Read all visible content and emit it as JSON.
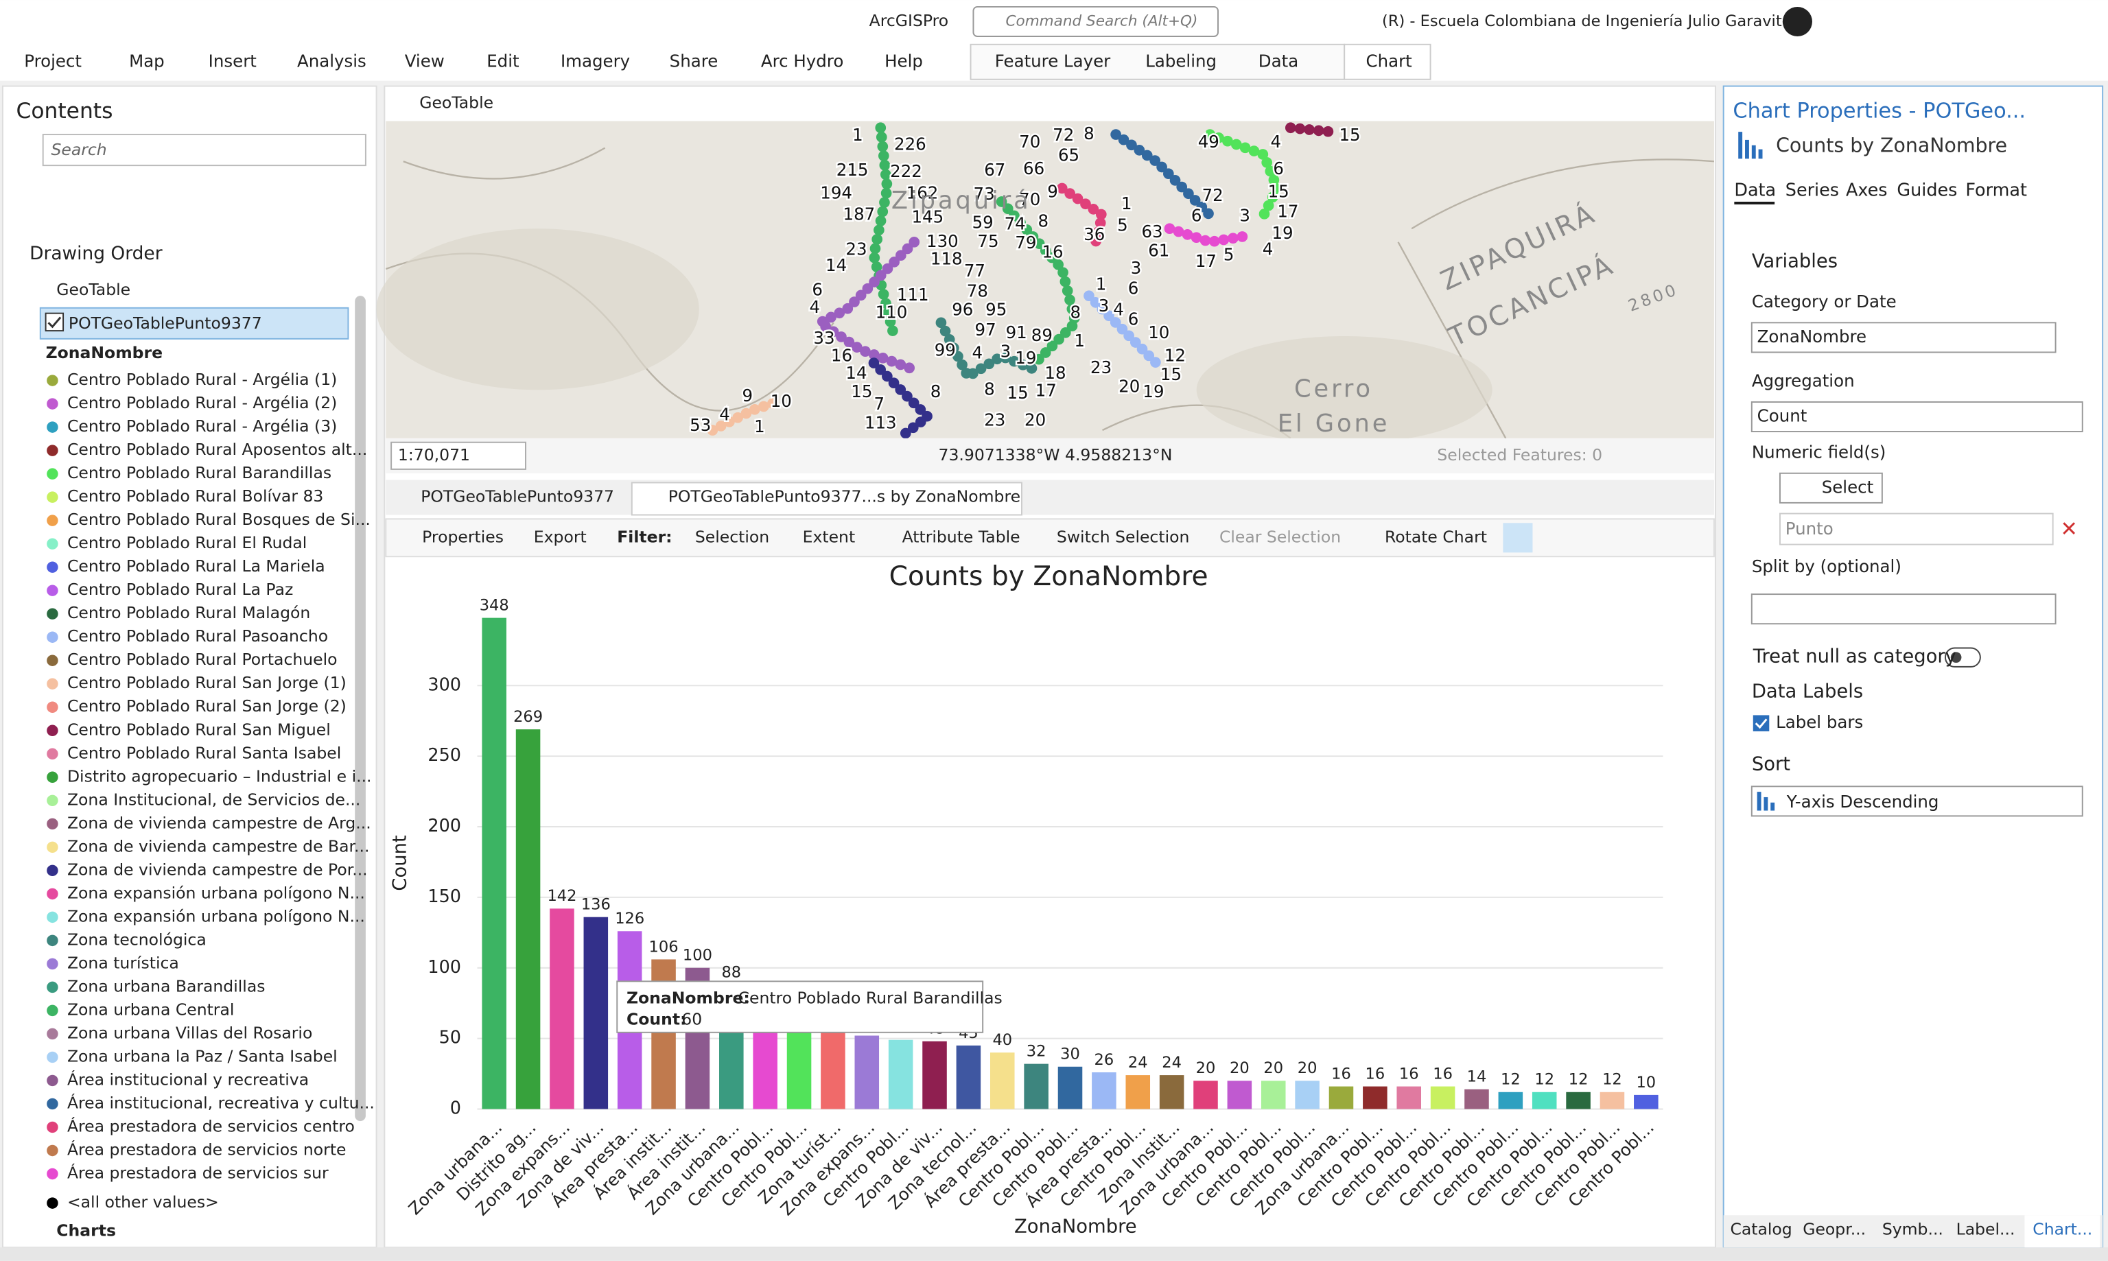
{
  "titlebar": {
    "app": "ArcGISPro",
    "search": "Command Search (Alt+Q)",
    "org": "(R) - Escuela Colombiana de Ingeniería Julio Garavito"
  },
  "menu": [
    "Project",
    "Map",
    "Insert",
    "Analysis",
    "View",
    "Edit",
    "Imagery",
    "Share",
    "Arc Hydro",
    "Help"
  ],
  "context_tabs": [
    "Feature Layer",
    "Labeling",
    "Data",
    "Chart"
  ],
  "contents": {
    "title": "Contents",
    "search": "Search",
    "drawing_order": "Drawing Order",
    "map": "GeoTable",
    "layer": "POTGeoTablePunto9377",
    "field": "ZonaNombre",
    "items": [
      {
        "label": "Centro Poblado Rural - Argélia (1)",
        "color": "#9aaa3c"
      },
      {
        "label": "Centro Poblado Rural - Argélia (2)",
        "color": "#c05ad0"
      },
      {
        "label": "Centro Poblado Rural - Argélia (3)",
        "color": "#2ea0c0"
      },
      {
        "label": "Centro Poblado Rural Aposentos alt...",
        "color": "#8f2b2b"
      },
      {
        "label": "Centro Poblado Rural Barandillas",
        "color": "#52e35a"
      },
      {
        "label": "Centro Poblado Rural Bolívar 83",
        "color": "#c8f060"
      },
      {
        "label": "Centro Poblado Rural Bosques de Si...",
        "color": "#f0a04a"
      },
      {
        "label": "Centro Poblado Rural El Rudal",
        "color": "#86f0c8"
      },
      {
        "label": "Centro Poblado Rural La Mariela",
        "color": "#5060e0"
      },
      {
        "label": "Centro Poblado Rural La Paz",
        "color": "#b85de8"
      },
      {
        "label": "Centro Poblado Rural Malagón",
        "color": "#2a6a40"
      },
      {
        "label": "Centro Poblado Rural Pasoancho",
        "color": "#9bb8f5"
      },
      {
        "label": "Centro Poblado Rural Portachuelo",
        "color": "#8a6a3c"
      },
      {
        "label": "Centro Poblado Rural San Jorge (1)",
        "color": "#f5c0a0"
      },
      {
        "label": "Centro Poblado Rural San Jorge (2)",
        "color": "#f08a80"
      },
      {
        "label": "Centro Poblado Rural San Miguel",
        "color": "#8f1f50"
      },
      {
        "label": "Centro Poblado Rural Santa Isabel",
        "color": "#e07aa0"
      },
      {
        "label": "Distrito agropecuario – Industrial e i...",
        "color": "#37a23c"
      },
      {
        "label": "Zona Institucional, de Servicios de...",
        "color": "#a8f098"
      },
      {
        "label": "Zona de vivienda campestre de Arg...",
        "color": "#9a6080"
      },
      {
        "label": "Zona de vivienda campestre de Bar...",
        "color": "#f5e08c"
      },
      {
        "label": "Zona de vivienda campestre de Por...",
        "color": "#33308a"
      },
      {
        "label": "Zona expansión urbana polígono N...",
        "color": "#e54a9f"
      },
      {
        "label": "Zona expansión urbana polígono N...",
        "color": "#86e3e0"
      },
      {
        "label": "Zona tecnológica",
        "color": "#3d857e"
      },
      {
        "label": "Zona turística",
        "color": "#9b7ad6"
      },
      {
        "label": "Zona urbana Barandillas",
        "color": "#3a9b80"
      },
      {
        "label": "Zona urbana Central",
        "color": "#3cb463"
      },
      {
        "label": "Zona urbana Villas del Rosario",
        "color": "#a87a9a"
      },
      {
        "label": "Zona urbana la Paz / Santa Isabel",
        "color": "#a8d0f5"
      },
      {
        "label": "Área institucional y recreativa",
        "color": "#8d5a8f"
      },
      {
        "label": "Área institucional, recreativa y cultu...",
        "color": "#31689f"
      },
      {
        "label": "Área prestadora de servicios centro",
        "color": "#e0407a"
      },
      {
        "label": "Área prestadora de servicios norte",
        "color": "#c07a4e"
      },
      {
        "label": "Área prestadora de servicios sur",
        "color": "#e64ad0"
      }
    ],
    "other": "<all other values>",
    "charts": "Charts"
  },
  "map_view": {
    "tab": "GeoTable",
    "scale": "1:70,071",
    "coords": "73.9071338°W 4.9588213°N",
    "selected": "Selected Features: 0",
    "labels": [
      "1",
      "226",
      "70",
      "72",
      "8",
      "65",
      "49",
      "4",
      "15",
      "215",
      "222",
      "67",
      "66",
      "6",
      "194",
      "162",
      "73",
      "70",
      "9",
      "1",
      "15",
      "187",
      "145",
      "59",
      "74",
      "8",
      "5",
      "72",
      "6",
      "3",
      "17",
      "63",
      "19",
      "75",
      "79",
      "36",
      "61",
      "130",
      "23",
      "16",
      "17",
      "5",
      "4",
      "14",
      "118",
      "77",
      "3",
      "6",
      "111",
      "78",
      "1",
      "6",
      "4",
      "110",
      "96",
      "95",
      "3",
      "4",
      "8",
      "6",
      "97",
      "91",
      "89",
      "10",
      "33",
      "1",
      "99",
      "4",
      "3",
      "19",
      "12",
      "16",
      "23",
      "15",
      "18",
      "14",
      "8",
      "8",
      "15",
      "17",
      "20",
      "19",
      "15",
      "7",
      "9",
      "10",
      "53",
      "4",
      "1",
      "113",
      "23",
      "20"
    ],
    "places": [
      "ZIPAQUIRÁ",
      "TOCANCIPÁ",
      "Cerro",
      "El Gone",
      "Zipaquirá",
      "2800"
    ]
  },
  "chart_view": {
    "tabs": [
      "POTGeoTablePunto9377",
      "POTGeoTablePunto9377...s by ZonaNombre"
    ],
    "toolbar": [
      "Properties",
      "Export",
      "Filter:",
      "Selection",
      "Extent",
      "Attribute Table",
      "Switch Selection",
      "Clear Selection",
      "Rotate Chart"
    ]
  },
  "chart_data": {
    "type": "bar",
    "title": "Counts by ZonaNombre",
    "x_label": "ZonaNombre",
    "y_label": "Count",
    "categories": [
      "Zona urbana...",
      "Distrito ag...",
      "Zona expans...",
      "Zona de viv...",
      "Área presta...",
      "Área instit...",
      "Área instit...",
      "Zona urbana...",
      "Centro Pobl...",
      "Centro Pobl...",
      "Zona turíst...",
      "Zona expans...",
      "Centro Pobl...",
      "Zona de viv...",
      "Zona tecnol...",
      "Área presta...",
      "Centro Pobl...",
      "Centro Pobl...",
      "Área presta...",
      "Centro Pobl...",
      "Zona Instit...",
      "Zona urbana...",
      "Centro Pobl...",
      "Centro Pobl...",
      "Centro Pobl...",
      "Zona urbana...",
      "Centro Pobl...",
      "Centro Pobl...",
      "Centro Pobl...",
      "Centro Pobl...",
      "Centro Pobl...",
      "Centro Pobl...",
      "Centro Pobl...",
      "Centro Pobl...",
      "Centro Pobl..."
    ],
    "values": [
      348,
      269,
      142,
      136,
      126,
      106,
      100,
      88,
      70,
      60,
      60,
      52,
      49,
      48,
      45,
      40,
      32,
      30,
      26,
      24,
      24,
      20,
      20,
      20,
      20,
      16,
      16,
      16,
      16,
      14,
      12,
      12,
      12,
      12,
      10
    ],
    "colors": [
      "#3cb463",
      "#37a23c",
      "#e54a9f",
      "#33308a",
      "#b85de8",
      "#c07a4e",
      "#8d5a8f",
      "#3a9b80",
      "#e64ad0",
      "#52e35a",
      "#f06a6a",
      "#9b7ad6",
      "#86e3e0",
      "#8f1f50",
      "#3f57a1",
      "#f5e08c",
      "#3d857e",
      "#31689f",
      "#9bb8f5",
      "#f0a04a",
      "#8a6a3c",
      "#e0407a",
      "#c05ad0",
      "#a8f098",
      "#a8d0f5",
      "#9aaa3c",
      "#8f2b2b",
      "#e07aa0",
      "#c8f060",
      "#9a6080",
      "#2ea0c0",
      "#50e0c0",
      "#2a6a40",
      "#f5c0a0",
      "#5060e0"
    ],
    "ylim": [
      0,
      350
    ],
    "yticks": [
      0,
      50,
      100,
      150,
      200,
      250,
      300
    ],
    "grid": true
  },
  "tooltip": {
    "field": "ZonaNombre:",
    "value": "Centro Poblado Rural Barandillas",
    "count_label": "Count:",
    "count": "60"
  },
  "chart_properties": {
    "title": "Chart Properties - POTGeo...",
    "subtitle": "Counts by ZonaNombre",
    "tabs": [
      "Data",
      "Series",
      "Axes",
      "Guides",
      "Format"
    ],
    "variables": "Variables",
    "category_label": "Category or Date",
    "category": "ZonaNombre",
    "aggregation_label": "Aggregation",
    "aggregation": "Count",
    "numeric_label": "Numeric field(s)",
    "select": "Select",
    "numeric_field": "Punto",
    "split_label": "Split by (optional)",
    "treat_null": "Treat null as category",
    "data_labels": "Data Labels",
    "label_bars": "Label bars",
    "sort_label": "Sort",
    "sort": "Y-axis Descending"
  },
  "bottom_tabs": [
    "Catalog",
    "Geopr...",
    "Symb...",
    "Label...",
    "Chart..."
  ]
}
